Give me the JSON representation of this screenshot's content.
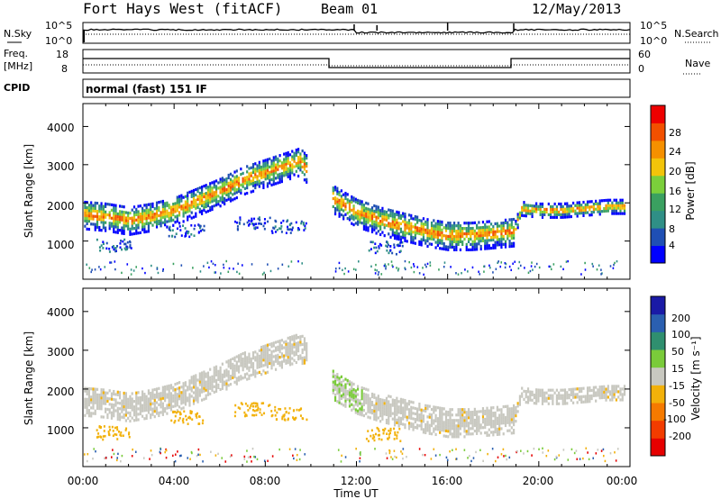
{
  "header": {
    "title": "Fort Hays West (fitACF)",
    "beam": "Beam 01",
    "date": "12/May/2013"
  },
  "strips": {
    "nsky_label": "N.Sky",
    "nsky_ticks": [
      "10^5",
      "10^0"
    ],
    "nsearch_label": "N.Search",
    "freq_label": "Freq.",
    "freq_unit": "[MHz]",
    "freq_ticks": [
      "18",
      "8"
    ],
    "nave_ticks": [
      "60",
      "0"
    ],
    "nave_label": "Nave",
    "cpid_label": "CPID",
    "cpid_text": "normal (fast) 151 IF"
  },
  "chart_data": [
    {
      "type": "heatmap",
      "panel": "power",
      "ylabel": "Slant Range [km]",
      "yticks": [
        "1000",
        "2000",
        "3000",
        "4000"
      ],
      "ylim": [
        0,
        4600
      ],
      "xlim_hours": [
        0,
        24
      ],
      "colorbar": {
        "label": "Power [dB]",
        "ticks": [
          "4",
          "8",
          "12",
          "16",
          "20",
          "24",
          "28"
        ],
        "colors": [
          "#0000ff",
          "#1f4fb4",
          "#2f8f86",
          "#3aa060",
          "#7bcf3b",
          "#f2c40a",
          "#f59000",
          "#f25000",
          "#ee0000"
        ]
      },
      "echo_band": {
        "hours": [
          0,
          1,
          2,
          3,
          4,
          5,
          6,
          7,
          8,
          9,
          9.5,
          11,
          12,
          13,
          14,
          15,
          16,
          17,
          18,
          18.9,
          19.2,
          20,
          21,
          22,
          23,
          23.8
        ],
        "center_km": [
          1700,
          1650,
          1550,
          1650,
          1800,
          2050,
          2300,
          2600,
          2800,
          3000,
          3100,
          2100,
          1750,
          1550,
          1400,
          1250,
          1150,
          1150,
          1200,
          1250,
          1850,
          1800,
          1800,
          1850,
          1900,
          1900
        ]
      }
    },
    {
      "type": "heatmap",
      "panel": "velocity",
      "ylabel": "Slant Range [km]",
      "yticks": [
        "1000",
        "2000",
        "3000",
        "4000"
      ],
      "ylim": [
        0,
        4600
      ],
      "xlim_hours": [
        0,
        24
      ],
      "xticks": [
        "00:00",
        "04:00",
        "08:00",
        "12:00",
        "16:00",
        "20:00",
        "00:00"
      ],
      "xlabel": "Time UT",
      "colorbar": {
        "label": "Velocity [m s⁻¹]",
        "ticks": [
          "200",
          "100",
          "50",
          "15",
          "-15",
          "-50",
          "-100",
          "-200"
        ],
        "colors": [
          "#1a1aa6",
          "#2a5fb0",
          "#2f8f6f",
          "#7acb3a",
          "#c8c8c0",
          "#f2b10a",
          "#f57a00",
          "#f23c00",
          "#e60000"
        ]
      }
    }
  ]
}
